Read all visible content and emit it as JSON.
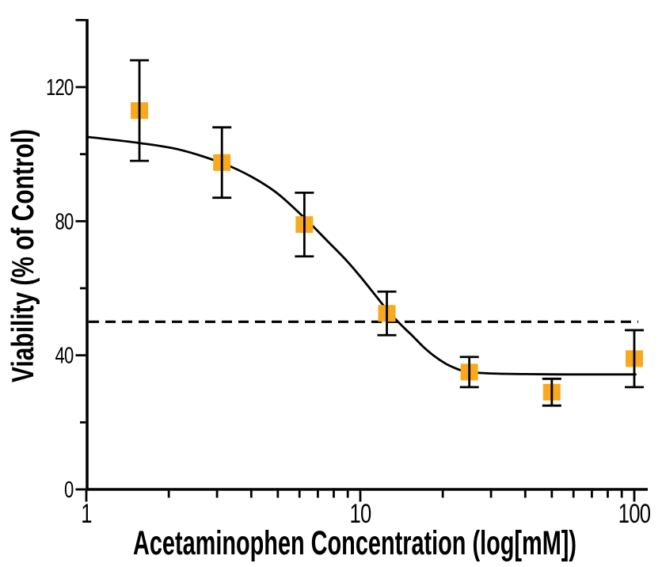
{
  "figure": {
    "background": "#FFFFFF"
  },
  "chart_data": {
    "type": "scatter",
    "title": "",
    "xlabel": "Acetaminophen Concentration (log[mM])",
    "ylabel": "Viability (% of Control)",
    "x_scale": "log",
    "x_range": [
      1,
      112
    ],
    "y_range": [
      0,
      140
    ],
    "x_axis": {
      "major": [
        {
          "v": 1,
          "l": "1"
        },
        {
          "v": 10,
          "l": "10"
        },
        {
          "v": 100,
          "l": "100"
        }
      ],
      "minor": [
        2,
        3,
        4,
        5,
        6,
        7,
        8,
        9,
        20,
        30,
        40,
        50,
        60,
        70,
        80,
        90
      ]
    },
    "y_axis": {
      "major": [
        {
          "v": 0,
          "l": "0"
        },
        {
          "v": 40,
          "l": "40"
        },
        {
          "v": 80,
          "l": "80"
        },
        {
          "v": 120,
          "l": "120"
        },
        {
          "v": 140,
          "l": ""
        }
      ],
      "minor": [
        20,
        60,
        100
      ]
    },
    "series": [
      {
        "name": "Viability",
        "marker": "square",
        "marker_color": "#F8A91E",
        "line_color": "#000000",
        "x": [
          1.5625,
          3.125,
          6.25,
          12.5,
          25,
          50,
          100
        ],
        "y": [
          113,
          97.5,
          79,
          52.5,
          35,
          29,
          39
        ],
        "y_err": [
          15,
          10.5,
          9.5,
          6.5,
          4.5,
          4,
          8.5
        ]
      }
    ],
    "fit_curve": {
      "name": "sigmoidal-fit",
      "color": "#000000",
      "points": [
        [
          1.02,
          105.1
        ],
        [
          1.57,
          103.3
        ],
        [
          2.2,
          101.3
        ],
        [
          3.16,
          97.2
        ],
        [
          4,
          93.3
        ],
        [
          5,
          88.2
        ],
        [
          6.36,
          80.4
        ],
        [
          7.5,
          74.5
        ],
        [
          8.9,
          68.3
        ],
        [
          10,
          63.5
        ],
        [
          11.2,
          58.5
        ],
        [
          12.6,
          53.3
        ],
        [
          14,
          49.3
        ],
        [
          15.5,
          45.8
        ],
        [
          17,
          42.5
        ],
        [
          18.6,
          39.8
        ],
        [
          20.5,
          37.5
        ],
        [
          22,
          36.3
        ],
        [
          24,
          35.2
        ],
        [
          26,
          34.9
        ],
        [
          28,
          34.7
        ],
        [
          32,
          34.5
        ],
        [
          40,
          34.4
        ],
        [
          55,
          34.3
        ],
        [
          75,
          34.3
        ],
        [
          101,
          34.3
        ]
      ]
    },
    "reference_line": {
      "y": 50,
      "style": "dashed",
      "color": "#000000"
    },
    "grid": false,
    "legend": false
  },
  "colors": {
    "marker": "#F8A91E",
    "axis": "#000000",
    "background": "#FFFFFF"
  }
}
